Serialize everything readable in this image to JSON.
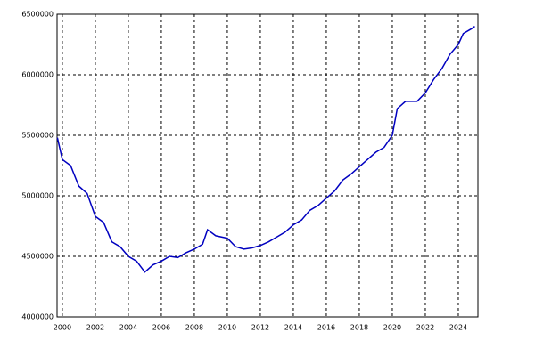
{
  "chart_data": {
    "type": "line",
    "x": [
      1999.7,
      2000.0,
      2000.5,
      2001.0,
      2001.5,
      2002.0,
      2002.5,
      2003.0,
      2003.5,
      2004.0,
      2004.5,
      2005.0,
      2005.5,
      2006.0,
      2006.5,
      2007.0,
      2007.5,
      2008.0,
      2008.5,
      2008.8,
      2009.3,
      2010.0,
      2010.5,
      2011.0,
      2011.5,
      2012.0,
      2012.5,
      2013.0,
      2013.5,
      2014.0,
      2014.5,
      2015.0,
      2015.5,
      2016.0,
      2016.5,
      2017.0,
      2017.5,
      2018.0,
      2018.5,
      2019.0,
      2019.5,
      2020.0,
      2020.3,
      2020.8,
      2021.5,
      2022.0,
      2022.5,
      2023.0,
      2023.5,
      2024.0,
      2024.3,
      2024.8,
      2025.0
    ],
    "series": [
      {
        "color": "#0000c0",
        "values": [
          5480000,
          5300000,
          5250000,
          5080000,
          5020000,
          4830000,
          4780000,
          4620000,
          4580000,
          4500000,
          4460000,
          4370000,
          4430000,
          4460000,
          4500000,
          4490000,
          4530000,
          4560000,
          4600000,
          4720000,
          4670000,
          4650000,
          4580000,
          4560000,
          4570000,
          4590000,
          4620000,
          4660000,
          4700000,
          4760000,
          4800000,
          4880000,
          4920000,
          4980000,
          5040000,
          5130000,
          5180000,
          5240000,
          5300000,
          5360000,
          5400000,
          5500000,
          5720000,
          5780000,
          5780000,
          5850000,
          5960000,
          6050000,
          6170000,
          6250000,
          6340000,
          6380000,
          6400000
        ]
      }
    ],
    "xlim": [
      1999.68,
      2025.19
    ],
    "xticks": [
      2000,
      2002,
      2004,
      2006,
      2008,
      2010,
      2012,
      2014,
      2016,
      2018,
      2020,
      2022,
      2024
    ],
    "ylim": [
      4000000,
      6500000
    ],
    "yticks": [
      4000000,
      4500000,
      5000000,
      5500000,
      6000000,
      6500000
    ],
    "grid": true
  }
}
